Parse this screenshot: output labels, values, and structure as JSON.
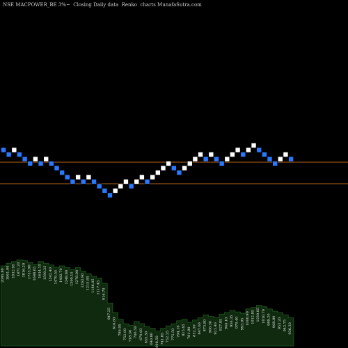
{
  "title": "NSE MACPOWER_BE 3%~  Closing Daily data  Renko  charts MunafaSutra.com",
  "colors": {
    "background": "#000000",
    "up_brick": "#ffffff",
    "down_brick": "#2979ff",
    "reference_line": "#b5651d",
    "volume_fill": "#0f2a0f",
    "volume_outline": "#1e5a1e"
  },
  "chart_data": {
    "type": "renko",
    "brick_size_percent": 3,
    "reference_lines": [
      0.385,
      0.0
    ],
    "bricks": [
      {
        "d": -1,
        "level": 1
      },
      {
        "d": -1,
        "level": 0
      },
      {
        "d": 1,
        "level": 1
      },
      {
        "d": -1,
        "level": 0
      },
      {
        "d": -1,
        "level": -1
      },
      {
        "d": -1,
        "level": -2
      },
      {
        "d": 1,
        "level": -1
      },
      {
        "d": -1,
        "level": -2
      },
      {
        "d": 1,
        "level": -1
      },
      {
        "d": -1,
        "level": -2
      },
      {
        "d": -1,
        "level": -3
      },
      {
        "d": -1,
        "level": -4
      },
      {
        "d": -1,
        "level": -5
      },
      {
        "d": -1,
        "level": -6
      },
      {
        "d": 1,
        "level": -5
      },
      {
        "d": -1,
        "level": -6
      },
      {
        "d": 1,
        "level": -5
      },
      {
        "d": -1,
        "level": -6
      },
      {
        "d": -1,
        "level": -7
      },
      {
        "d": -1,
        "level": -8
      },
      {
        "d": -1,
        "level": -9
      },
      {
        "d": 1,
        "level": -8
      },
      {
        "d": 1,
        "level": -7
      },
      {
        "d": 1,
        "level": -6
      },
      {
        "d": -1,
        "level": -7
      },
      {
        "d": 1,
        "level": -6
      },
      {
        "d": 1,
        "level": -5
      },
      {
        "d": -1,
        "level": -6
      },
      {
        "d": 1,
        "level": -5
      },
      {
        "d": 1,
        "level": -4
      },
      {
        "d": 1,
        "level": -3
      },
      {
        "d": 1,
        "level": -2
      },
      {
        "d": -1,
        "level": -3
      },
      {
        "d": -1,
        "level": -4
      },
      {
        "d": 1,
        "level": -3
      },
      {
        "d": 1,
        "level": -2
      },
      {
        "d": 1,
        "level": -1
      },
      {
        "d": 1,
        "level": 0
      },
      {
        "d": -1,
        "level": -1
      },
      {
        "d": 1,
        "level": 0
      },
      {
        "d": -1,
        "level": -1
      },
      {
        "d": -1,
        "level": -2
      },
      {
        "d": 1,
        "level": -1
      },
      {
        "d": 1,
        "level": 0
      },
      {
        "d": 1,
        "level": 1
      },
      {
        "d": -1,
        "level": 0
      },
      {
        "d": 1,
        "level": 1
      },
      {
        "d": 1,
        "level": 2
      },
      {
        "d": -1,
        "level": 1
      },
      {
        "d": -1,
        "level": 0
      },
      {
        "d": -1,
        "level": -1
      },
      {
        "d": -1,
        "level": -2
      },
      {
        "d": 1,
        "level": -1
      },
      {
        "d": 1,
        "level": 0
      },
      {
        "d": -1,
        "level": -1
      }
    ],
    "volume_labels": [
      "2041.80",
      "1961.00",
      "1912.95",
      "1871.20",
      "1816.20",
      "1753.90",
      "1688.65",
      "1614.15",
      "1590.25",
      "1542.40",
      "1479.55",
      "1402.70",
      "1348.80",
      "1309.15",
      "1278.00",
      "1263.90",
      "1215.85",
      "1186.05",
      "1117.45",
      "916.70",
      "847.25",
      "816.60",
      "786.95",
      "752.00",
      "718.50",
      "700.50",
      "670.60",
      "655.30",
      "640.80",
      "698.50",
      "741.85",
      "752.25",
      "775.50",
      "794.10",
      "815.65",
      "781.80",
      "812.50",
      "847.60",
      "873.80",
      "906.30",
      "921.40",
      "927.85",
      "944.10",
      "956.35",
      "970.40",
      "993.95",
      "1000.90",
      "1012.85",
      "1030.85",
      "1010.70",
      "989.20",
      "968.80",
      "953.20",
      "942.75",
      "936.30"
    ],
    "volume": [
      0.92,
      0.95,
      0.97,
      0.99,
      0.98,
      0.96,
      0.94,
      0.97,
      0.95,
      0.93,
      0.9,
      0.92,
      0.9,
      0.88,
      0.9,
      0.86,
      0.83,
      0.8,
      0.78,
      0.72,
      0.58,
      0.45,
      0.36,
      0.3,
      0.28,
      0.33,
      0.3,
      0.26,
      0.24,
      0.2,
      0.24,
      0.27,
      0.3,
      0.34,
      0.36,
      0.32,
      0.35,
      0.38,
      0.42,
      0.4,
      0.38,
      0.43,
      0.45,
      0.48,
      0.46,
      0.44,
      0.5,
      0.52,
      0.55,
      0.53,
      0.5,
      0.47,
      0.45,
      0.42,
      0.38
    ]
  }
}
